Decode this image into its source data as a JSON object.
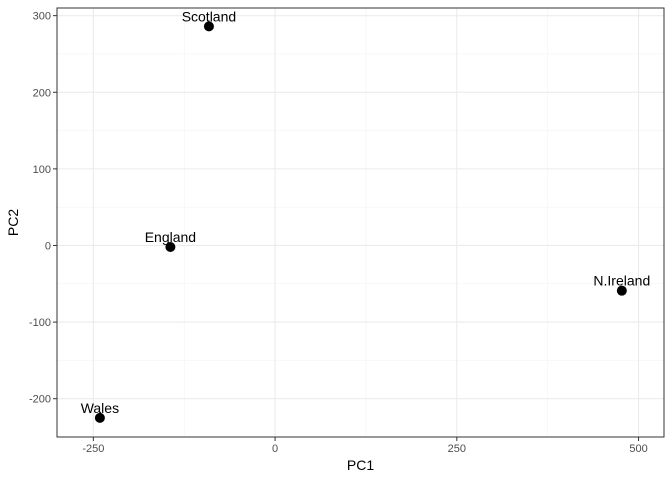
{
  "chart_data": {
    "type": "scatter",
    "title": "",
    "xlabel": "PC1",
    "ylabel": "PC2",
    "xlim": [
      -300,
      535
    ],
    "ylim": [
      -250,
      310
    ],
    "x_ticks": [
      -250,
      0,
      250,
      500
    ],
    "x_tick_labels": [
      "-250",
      "0",
      "250",
      "500"
    ],
    "y_ticks": [
      -200,
      -100,
      0,
      100,
      200,
      300
    ],
    "y_tick_labels": [
      "-200",
      "-100",
      "0",
      "100",
      "200",
      "300"
    ],
    "grid": true,
    "legend": "none",
    "points": [
      {
        "label": "England",
        "x": -144,
        "y": -2
      },
      {
        "label": "Wales",
        "x": -241,
        "y": -225
      },
      {
        "label": "Scotland",
        "x": -91,
        "y": 286
      },
      {
        "label": "N.Ireland",
        "x": 477,
        "y": -59
      }
    ],
    "colors": {
      "point": "#000000",
      "panel_border": "#333333",
      "grid_major": "#ebebeb",
      "grid_minor": "#f3f3f3",
      "tick_label": "#4d4d4d"
    }
  }
}
